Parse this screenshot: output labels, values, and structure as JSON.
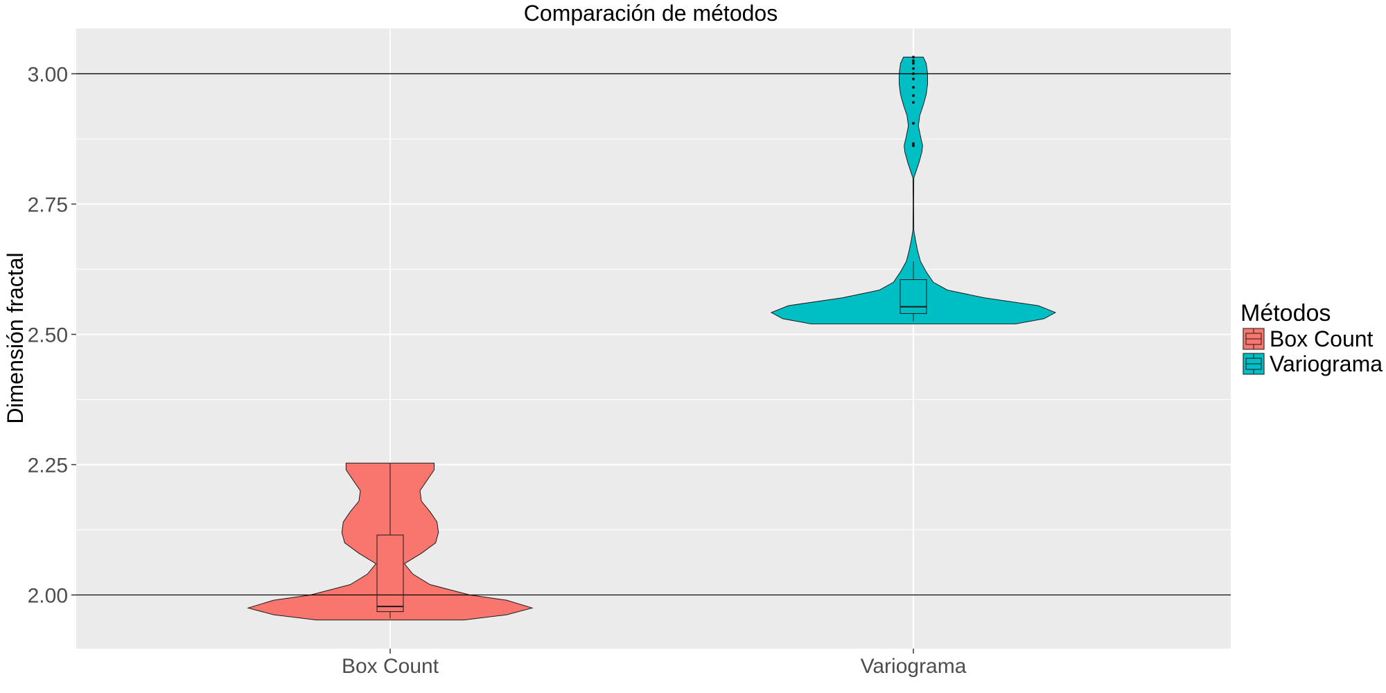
{
  "chart_data": {
    "type": "violin",
    "title": "Comparación de métodos",
    "xlabel": "",
    "ylabel": "Dimensión fractal",
    "ylim": [
      1.897,
      3.087
    ],
    "yticks": [
      2.0,
      2.25,
      2.5,
      2.75,
      3.0
    ],
    "ytick_labels": [
      "2.00",
      "2.25",
      "2.50",
      "2.75",
      "3.00"
    ],
    "reference_lines": [
      2.0,
      3.0
    ],
    "grid": true,
    "legend": {
      "title": "Métodos",
      "position": "right",
      "items": [
        {
          "label": "Box Count",
          "color": "#F8766D"
        },
        {
          "label": "Variograma",
          "color": "#00BFC4"
        }
      ]
    },
    "categories": [
      "Box Count",
      "Variograma"
    ],
    "series": [
      {
        "name": "Box Count",
        "color": "#F8766D",
        "violin": {
          "y": [
            1.952,
            1.962,
            1.975,
            1.99,
            2.0,
            2.02,
            2.04,
            2.06,
            2.08,
            2.1,
            2.12,
            2.14,
            2.16,
            2.18,
            2.2,
            2.22,
            2.24,
            2.253
          ],
          "width": [
            0.52,
            0.82,
            1.0,
            0.82,
            0.56,
            0.28,
            0.16,
            0.1,
            0.22,
            0.32,
            0.34,
            0.33,
            0.28,
            0.22,
            0.21,
            0.26,
            0.31,
            0.31
          ]
        },
        "box": {
          "min": 1.955,
          "q1": 1.968,
          "median": 1.978,
          "q3": 2.115,
          "max": 2.253
        },
        "outliers": []
      },
      {
        "name": "Variograma",
        "color": "#00BFC4",
        "violin": {
          "y": [
            2.52,
            2.53,
            2.542,
            2.555,
            2.57,
            2.585,
            2.6,
            2.62,
            2.64,
            2.66,
            2.68,
            2.7,
            2.75,
            2.8,
            2.83,
            2.85,
            2.862,
            2.88,
            2.9,
            2.92,
            2.94,
            2.96,
            2.98,
            3.0,
            3.02,
            3.032
          ],
          "width": [
            0.72,
            0.92,
            1.0,
            0.88,
            0.5,
            0.24,
            0.14,
            0.09,
            0.05,
            0.03,
            0.015,
            0.003,
            0.002,
            0.003,
            0.04,
            0.06,
            0.065,
            0.05,
            0.035,
            0.045,
            0.07,
            0.09,
            0.1,
            0.1,
            0.09,
            0.07
          ]
        },
        "box": {
          "min": 2.525,
          "q1": 2.54,
          "median": 2.553,
          "q3": 2.605,
          "max": 2.64
        },
        "outliers": [
          2.862,
          2.866,
          2.905,
          2.945,
          2.958,
          2.974,
          2.99,
          3.0,
          3.01,
          3.02,
          3.025,
          3.032
        ]
      }
    ]
  }
}
